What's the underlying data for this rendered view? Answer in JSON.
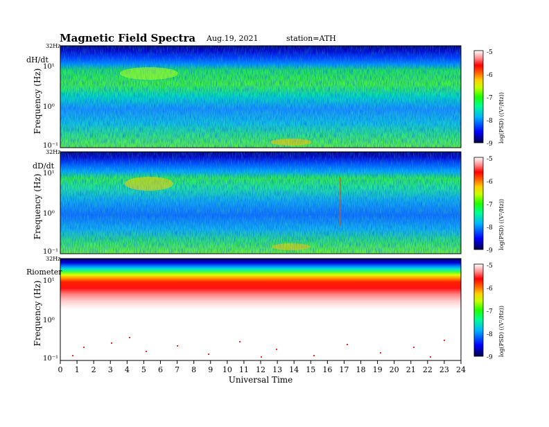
{
  "header": {
    "title": "Magnetic  Field  Spectra",
    "date": "Aug.19, 2021",
    "station": "station=ATH"
  },
  "chart_data": [
    {
      "type": "heatmap",
      "panel_label": "dH/dt",
      "ylabel": "Frequency  (Hz)",
      "y_top_label": "32Hz",
      "y_tick_labels": [
        "10⁻¹",
        "10⁰",
        "10¹"
      ],
      "y_scale": "log",
      "ylim": [
        0.1,
        32
      ],
      "xlim": [
        0,
        24
      ],
      "colorbar": {
        "label": "log(PSD) ((V²/Hz))",
        "ticks": [
          "-5",
          "-6",
          "-7",
          "-8",
          "-9"
        ],
        "range": [
          -9,
          -5
        ]
      },
      "dominant_level_by_frequency": [
        {
          "band_hz": [
            16,
            32
          ],
          "level": -8.6
        },
        {
          "band_hz": [
            8,
            16
          ],
          "level": -8.0
        },
        {
          "band_hz": [
            2,
            8
          ],
          "level": -7.4
        },
        {
          "band_hz": [
            0.3,
            2
          ],
          "level": -7.9
        },
        {
          "band_hz": [
            0.1,
            0.3
          ],
          "level": -7.3
        }
      ]
    },
    {
      "type": "heatmap",
      "panel_label": "dD/dt",
      "ylabel": "Frequency  (Hz)",
      "y_top_label": "32Hz",
      "y_tick_labels": [
        "10⁻¹",
        "10⁰",
        "10¹"
      ],
      "y_scale": "log",
      "ylim": [
        0.1,
        32
      ],
      "xlim": [
        0,
        24
      ],
      "colorbar": {
        "label": "log(PSD) ((V²/Hz))",
        "ticks": [
          "-5",
          "-6",
          "-7",
          "-8",
          "-9"
        ],
        "range": [
          -9,
          -5
        ]
      },
      "dominant_level_by_frequency": [
        {
          "band_hz": [
            16,
            32
          ],
          "level": -8.7
        },
        {
          "band_hz": [
            8,
            16
          ],
          "level": -8.1
        },
        {
          "band_hz": [
            2,
            8
          ],
          "level": -7.3
        },
        {
          "band_hz": [
            0.3,
            2
          ],
          "level": -7.9
        },
        {
          "band_hz": [
            0.1,
            0.3
          ],
          "level": -7.2
        }
      ]
    },
    {
      "type": "heatmap",
      "panel_label": "Riometer",
      "ylabel": "Frequency  (Hz)",
      "y_top_label": "32Hz",
      "y_tick_labels": [
        "10⁻¹",
        "10⁰",
        "10¹"
      ],
      "y_scale": "log",
      "ylim": [
        0.1,
        32
      ],
      "xlim": [
        0,
        24
      ],
      "colorbar": {
        "label": "log(PSD) ((V²/Hz))",
        "ticks": [
          "-5",
          "-6",
          "-7",
          "-8",
          "-9"
        ],
        "range": [
          -9,
          -5
        ]
      },
      "dominant_level_by_frequency": [
        {
          "band_hz": [
            16,
            32
          ],
          "level": -8.8
        },
        {
          "band_hz": [
            10,
            16
          ],
          "level": -7.0
        },
        {
          "band_hz": [
            5,
            10
          ],
          "level": -6.0
        },
        {
          "band_hz": [
            3,
            5
          ],
          "level": -5.3
        },
        {
          "band_hz": [
            0.1,
            3
          ],
          "level": -5.0
        }
      ]
    }
  ],
  "x_axis": {
    "label": "Universal Time",
    "ticks": [
      "0",
      "1",
      "2",
      "3",
      "4",
      "5",
      "6",
      "7",
      "8",
      "9",
      "10",
      "11",
      "12",
      "13",
      "14",
      "15",
      "16",
      "17",
      "18",
      "19",
      "20",
      "21",
      "22",
      "23",
      "24"
    ]
  },
  "colors": {
    "deep_blue": "#00008b",
    "blue": "#0050ff",
    "cyan": "#00e0ff",
    "green": "#20ee40",
    "yellow": "#ffff00",
    "orange": "#ffa000",
    "red": "#ff0000",
    "white": "#ffffff"
  }
}
